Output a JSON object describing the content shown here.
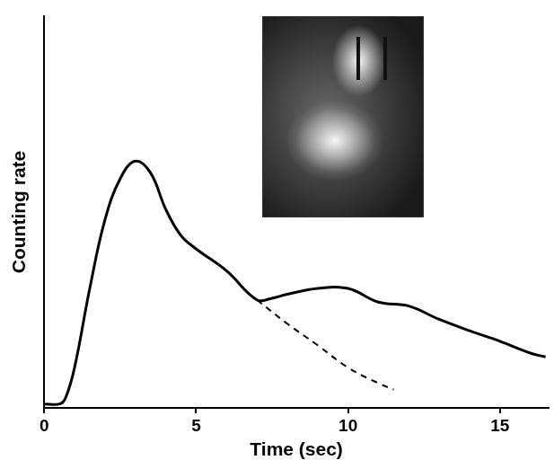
{
  "chart_data": {
    "type": "line",
    "x_label": "Time (sec)",
    "y_label": "Counting rate",
    "xlim": [
      0,
      16.6
    ],
    "xticks": [
      0,
      5,
      10,
      15
    ],
    "ylim": [
      0,
      100
    ],
    "tick_labels": "x",
    "grid": false,
    "series": [
      {
        "color": "#000000",
        "line_style": "solid",
        "x": [
          0,
          0.5,
          0.7,
          1,
          1.5,
          2,
          2.5,
          3,
          3.5,
          4,
          4.5,
          5,
          6,
          7,
          7.5,
          8,
          9,
          10,
          11,
          12,
          13,
          14,
          15,
          16,
          16.5
        ],
        "values": [
          1,
          1,
          2.5,
          10.3,
          30.5,
          48,
          58.5,
          63,
          60,
          50.7,
          44,
          40.6,
          35,
          27.6,
          28,
          29,
          30.5,
          30.5,
          27,
          26,
          22.6,
          19.7,
          17,
          14,
          13
        ]
      },
      {
        "color": "#000000",
        "line_style": "dashed",
        "x": [
          7,
          8,
          9,
          10,
          11,
          11.5
        ],
        "values": [
          27.6,
          21.5,
          16,
          10.3,
          6.3,
          4.7
        ]
      }
    ]
  }
}
